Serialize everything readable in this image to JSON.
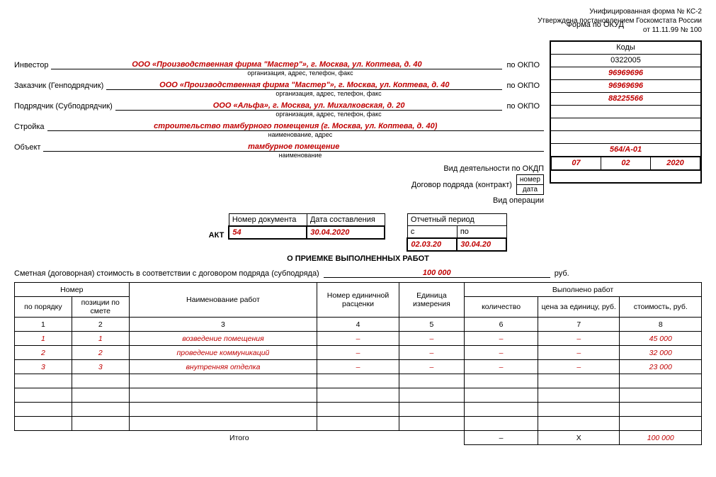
{
  "header": {
    "line1": "Унифицированная форма № КС-2",
    "line2": "Утверждена постановлением Госкомстата России",
    "line3": "от 11.11.99 № 100"
  },
  "codes": {
    "title": "Коды",
    "okud_label": "Форма по ОКУД",
    "okud": "0322005",
    "okpo_label": "по ОКПО",
    "investor_okpo": "96969696",
    "customer_okpo": "96969696",
    "contractor_okpo": "88225566",
    "okdp_label": "Вид деятельности по ОКДП",
    "okdp": "",
    "contract_label": "Договор подряда (контракт)",
    "number_label": "номер",
    "contract_number": "564/А-01",
    "date_label": "дата",
    "contract_day": "07",
    "contract_month": "02",
    "contract_year": "2020",
    "operation_label": "Вид операции",
    "operation": ""
  },
  "parties": {
    "investor_label": "Инвестор",
    "investor": "ООО «Производственная фирма \"Мастер\"», г. Москва, ул. Коптева, д. 40",
    "customer_label": "Заказчик (Генподрядчик)",
    "customer": "ООО «Производственная фирма \"Мастер\"», г. Москва, ул. Коптева, д. 40",
    "contractor_label": "Подрядчик (Субподрядчик)",
    "contractor": "ООО «Альфа», г. Москва, ул. Михалковская, д. 20",
    "construction_label": "Стройка",
    "construction": "строительство тамбурного помещения (г. Москва, ул. Коптева, д. 40)",
    "object_label": "Объект",
    "object": "тамбурное помещение",
    "org_caption": "организация, адрес, телефон, факс",
    "name_addr_caption": "наименование, адрес",
    "name_caption": "наименование"
  },
  "doc": {
    "act_label": "АКТ",
    "title": "О ПРИЕМКЕ ВЫПОЛНЕННЫХ РАБОТ",
    "doc_number_label": "Номер документа",
    "doc_number": "54",
    "doc_date_label": "Дата составления",
    "doc_date": "30.04.2020",
    "period_label": "Отчетный период",
    "period_from_label": "с",
    "period_to_label": "по",
    "period_from": "02.03.20",
    "period_to": "30.04.20"
  },
  "estimate": {
    "label": "Сметная (договорная) стоимость в соответствии с договором подряда (субподряда)",
    "value": "100 000",
    "currency": "руб."
  },
  "table": {
    "headers": {
      "number_group": "Номер",
      "order": "по порядку",
      "position": "позиции по смете",
      "work_name": "Наименование работ",
      "unit_price_no": "Номер единичной расценки",
      "unit": "Единица измерения",
      "done_group": "Выполнено работ",
      "qty": "количество",
      "price_per_unit": "цена за единицу, руб.",
      "cost": "стоимость, руб."
    },
    "colnums": [
      "1",
      "2",
      "3",
      "4",
      "5",
      "6",
      "7",
      "8"
    ],
    "rows": [
      {
        "n": "1",
        "pos": "1",
        "name": "возведение помещения",
        "upn": "–",
        "unit": "–",
        "qty": "–",
        "ppu": "–",
        "cost": "45 000"
      },
      {
        "n": "2",
        "pos": "2",
        "name": "проведение коммуникаций",
        "upn": "–",
        "unit": "–",
        "qty": "–",
        "ppu": "–",
        "cost": "32 000"
      },
      {
        "n": "3",
        "pos": "3",
        "name": "внутренняя отделка",
        "upn": "–",
        "unit": "–",
        "qty": "–",
        "ppu": "–",
        "cost": "23 000"
      }
    ],
    "total_label": "Итого",
    "total_qty": "–",
    "total_ppu": "Х",
    "total_cost": "100 000"
  }
}
